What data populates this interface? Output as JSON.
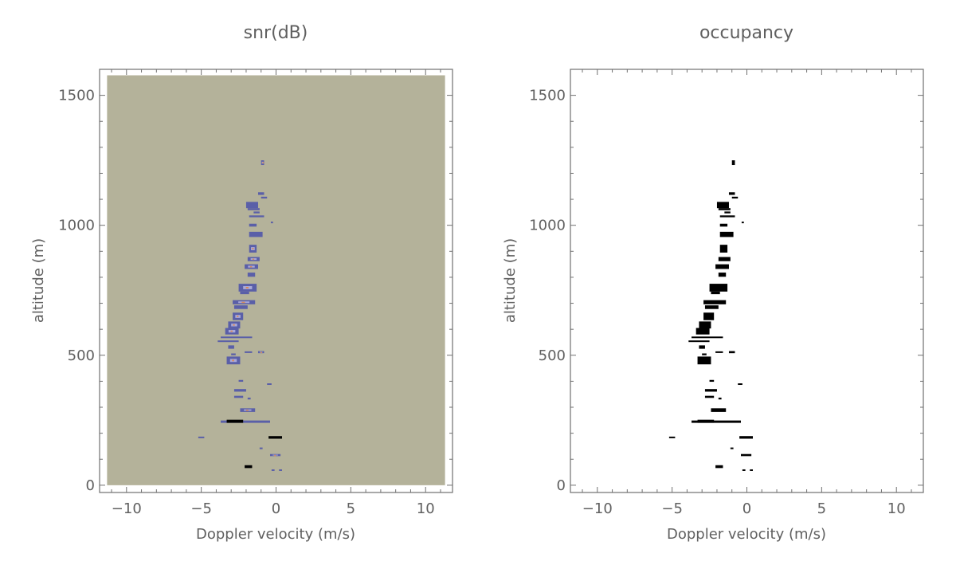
{
  "chart_data": [
    {
      "type": "heatmap",
      "title": "snr(dB)",
      "xlabel": "Doppler velocity (m/s)",
      "ylabel": "altitude (m)",
      "xlim": [
        -11.8,
        11.8
      ],
      "ylim": [
        -28,
        1600
      ],
      "data_extent": {
        "x": [
          -11.3,
          11.3
        ],
        "y": [
          0,
          1577
        ]
      },
      "xticks": [
        -10,
        -5,
        0,
        5,
        10
      ],
      "yticks": [
        0,
        500,
        1000,
        1500
      ],
      "grid": false,
      "colors": {
        "background": "#b4b29a",
        "low": "#5a5fa8",
        "mid": "#a9a9d8",
        "high": "#d98a5a",
        "peak": "#000000"
      }
    },
    {
      "type": "heatmap",
      "title": "occupancy",
      "xlabel": "Doppler velocity (m/s)",
      "ylabel": "altitude (m)",
      "xlim": [
        -11.8,
        11.8
      ],
      "ylim": [
        -28,
        1600
      ],
      "xticks": [
        -10,
        -5,
        0,
        5,
        10
      ],
      "yticks": [
        0,
        500,
        1000,
        1500
      ],
      "grid": false,
      "colors": {
        "background": "#ffffff",
        "occupied": "#000000"
      }
    }
  ],
  "detections_note_fields": [
    "v_min",
    "v_max",
    "alt_min",
    "alt_max",
    "snr_level"
  ],
  "detections": [
    [
      -1.0,
      -0.8,
      1232,
      1250,
      2
    ],
    [
      -1.2,
      -0.8,
      1117,
      1127,
      1
    ],
    [
      -1.0,
      -0.6,
      1103,
      1110,
      1
    ],
    [
      -2.0,
      -1.2,
      1066,
      1090,
      1
    ],
    [
      -1.9,
      -1.1,
      1058,
      1066,
      1
    ],
    [
      -1.5,
      -1.1,
      1046,
      1053,
      1
    ],
    [
      -1.8,
      -0.8,
      1031,
      1038,
      1
    ],
    [
      -1.8,
      -1.3,
      995,
      1006,
      1
    ],
    [
      -0.35,
      -0.2,
      1008,
      1014,
      1
    ],
    [
      -1.8,
      -0.9,
      955,
      975,
      1
    ],
    [
      -1.8,
      -1.3,
      895,
      925,
      2
    ],
    [
      -1.9,
      -1.1,
      862,
      878,
      2
    ],
    [
      -2.1,
      -1.2,
      832,
      850,
      2
    ],
    [
      -1.9,
      -1.4,
      802,
      818,
      1
    ],
    [
      -2.5,
      -1.3,
      745,
      775,
      2
    ],
    [
      -2.4,
      -1.8,
      735,
      745,
      1
    ],
    [
      -2.9,
      -1.4,
      696,
      712,
      2
    ],
    [
      -2.8,
      -1.9,
      678,
      692,
      1
    ],
    [
      -2.9,
      -2.2,
      635,
      664,
      2
    ],
    [
      -3.2,
      -2.4,
      603,
      630,
      2
    ],
    [
      -3.4,
      -2.5,
      580,
      605,
      3
    ],
    [
      -3.7,
      -1.6,
      566,
      572,
      1
    ],
    [
      -3.9,
      -2.5,
      551,
      557,
      1
    ],
    [
      -3.2,
      -2.8,
      525,
      538,
      1
    ],
    [
      -2.1,
      -1.6,
      509,
      515,
      1
    ],
    [
      -1.2,
      -0.8,
      508,
      516,
      2
    ],
    [
      -3.0,
      -2.7,
      500,
      507,
      1
    ],
    [
      -3.3,
      -2.4,
      465,
      495,
      2
    ],
    [
      -2.5,
      -2.2,
      398,
      405,
      1
    ],
    [
      -0.6,
      -0.3,
      386,
      392,
      1
    ],
    [
      -2.8,
      -2.0,
      360,
      370,
      1
    ],
    [
      -2.8,
      -2.2,
      336,
      344,
      1
    ],
    [
      -1.9,
      -1.7,
      330,
      337,
      1
    ],
    [
      -2.4,
      -1.4,
      282,
      296,
      2
    ],
    [
      -3.7,
      -0.4,
      240,
      249,
      1
    ],
    [
      -3.3,
      -2.2,
      240,
      252,
      4
    ],
    [
      -5.2,
      -4.8,
      181,
      187,
      1
    ],
    [
      -0.5,
      0.4,
      179,
      189,
      4
    ],
    [
      -1.1,
      -0.9,
      139,
      145,
      1
    ],
    [
      -0.4,
      0.3,
      112,
      120,
      2
    ],
    [
      -2.1,
      -1.6,
      66,
      77,
      4
    ],
    [
      -0.3,
      -0.1,
      55,
      61,
      1
    ],
    [
      0.2,
      0.4,
      55,
      61,
      1
    ]
  ]
}
